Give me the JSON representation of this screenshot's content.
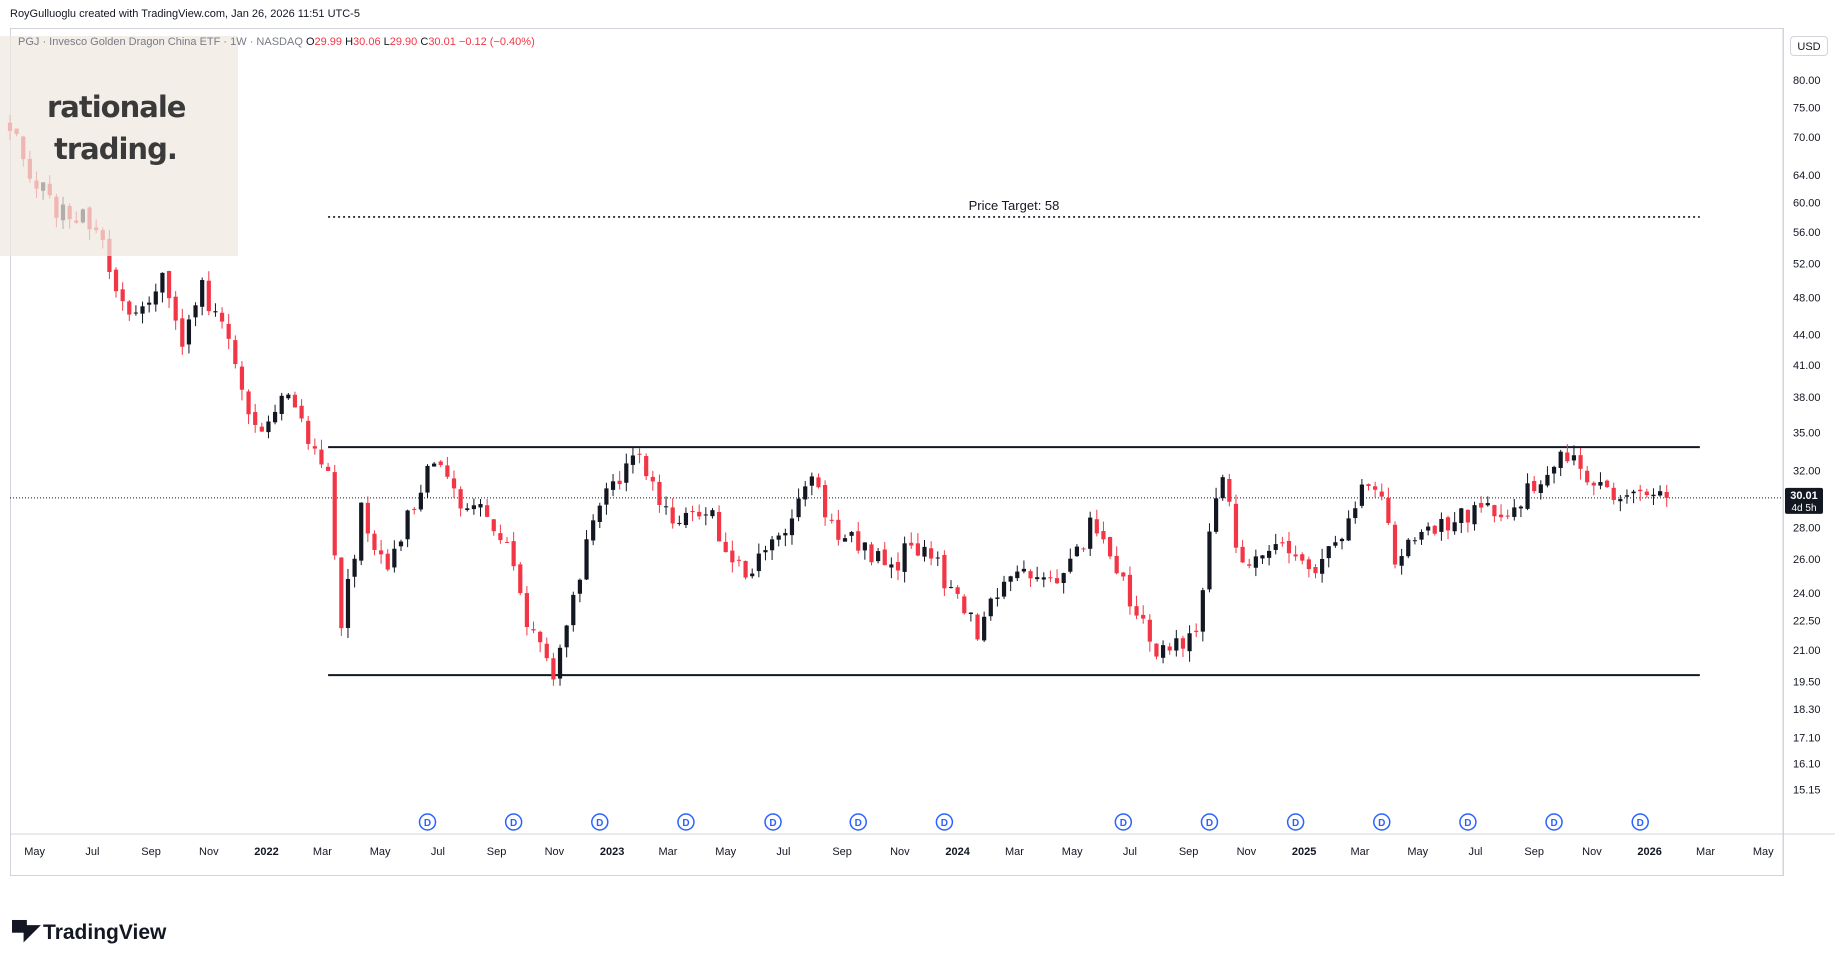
{
  "header": {
    "attribution": "RoyGulluoglu created with TradingView.com, Jan 26, 2026 11:51 UTC-5"
  },
  "legend": {
    "symbol": "PGJ · Invesco Golden Dragon China ETF · 1W · NASDAQ",
    "open_label": "O",
    "open": "29.99",
    "high_label": "H",
    "high": "30.06",
    "low_label": "L",
    "low": "29.90",
    "close_label": "C",
    "close": "30.01",
    "change": "−0.12 (−0.40%)"
  },
  "watermark": {
    "line1": "rationale",
    "line2": "trading."
  },
  "currency_button": "USD",
  "price_badge": {
    "price": "30.01",
    "countdown": "4d 5h"
  },
  "footer": {
    "logo_text": "TradingView"
  },
  "colors": {
    "up": "#131722",
    "down": "#f23645",
    "text": "#131722",
    "grid_line": "#d1d4dc",
    "dividend": "#2962ff"
  },
  "chart_data": {
    "type": "candlestick",
    "y_scale": "log",
    "ylim": [
      14.5,
      86
    ],
    "y_ticks": [
      "80.00",
      "75.00",
      "70.00",
      "64.00",
      "60.00",
      "56.00",
      "52.00",
      "48.00",
      "44.00",
      "41.00",
      "38.00",
      "35.00",
      "32.00",
      "28.00",
      "26.00",
      "24.00",
      "22.50",
      "21.00",
      "19.50",
      "18.30",
      "17.10",
      "16.10",
      "15.15"
    ],
    "y_tick_values": [
      80,
      75,
      70,
      64,
      60,
      56,
      52,
      48,
      44,
      41,
      38,
      35,
      32,
      28,
      26,
      24,
      22.5,
      21,
      19.5,
      18.3,
      17.1,
      16.1,
      15.15
    ],
    "x_ticks": [
      "May",
      "Jul",
      "Sep",
      "Nov",
      "2022",
      "Mar",
      "May",
      "Jul",
      "Sep",
      "Nov",
      "2023",
      "Mar",
      "May",
      "Jul",
      "Sep",
      "Nov",
      "2024",
      "Mar",
      "May",
      "Jul",
      "Sep",
      "Nov",
      "2025",
      "Mar",
      "May",
      "Jul",
      "Sep",
      "Nov",
      "2026",
      "Mar",
      "May"
    ],
    "x_range": [
      "2021-04-05",
      "2026-05-25"
    ],
    "last_price": 30.01,
    "annotations": [
      {
        "type": "horizontal-line",
        "value": 58,
        "style": "dotted",
        "label": "Price Target: 58",
        "from": "2022-03-07",
        "to": "2026-02-23"
      },
      {
        "type": "horizontal-line",
        "value": 33.8,
        "style": "solid",
        "label": "",
        "from": "2022-03-07",
        "to": "2026-02-23"
      },
      {
        "type": "horizontal-line",
        "value": 19.8,
        "style": "solid",
        "label": "",
        "from": "2022-03-07",
        "to": "2026-02-23"
      }
    ],
    "dividend_marker_label": "D",
    "dividend_dates": [
      "2022-06-20",
      "2022-09-19",
      "2022-12-19",
      "2023-03-20",
      "2023-06-20",
      "2023-09-18",
      "2023-12-18",
      "2024-06-24",
      "2024-09-23",
      "2024-12-23",
      "2025-03-24",
      "2025-06-23",
      "2025-09-22",
      "2025-12-22"
    ],
    "anchors": [
      [
        "2021-04-05",
        72
      ],
      [
        "2021-04-26",
        64
      ],
      [
        "2021-05-24",
        59
      ],
      [
        "2021-06-21",
        58
      ],
      [
        "2021-07-12",
        54
      ],
      [
        "2021-07-26",
        48
      ],
      [
        "2021-08-23",
        46
      ],
      [
        "2021-09-13",
        50
      ],
      [
        "2021-10-04",
        43
      ],
      [
        "2021-10-25",
        49
      ],
      [
        "2021-11-15",
        45
      ],
      [
        "2021-12-06",
        38
      ],
      [
        "2021-12-27",
        35
      ],
      [
        "2022-01-24",
        38
      ],
      [
        "2022-02-14",
        34
      ],
      [
        "2022-03-07",
        32
      ],
      [
        "2022-03-21",
        22.5
      ],
      [
        "2022-04-11",
        29
      ],
      [
        "2022-05-09",
        25.5
      ],
      [
        "2022-05-30",
        28.5
      ],
      [
        "2022-06-27",
        33
      ],
      [
        "2022-07-25",
        29
      ],
      [
        "2022-08-15",
        30
      ],
      [
        "2022-09-12",
        27
      ],
      [
        "2022-10-03",
        22.5
      ],
      [
        "2022-10-31",
        19.5
      ],
      [
        "2022-11-21",
        23.5
      ],
      [
        "2022-12-12",
        28.8
      ],
      [
        "2023-01-09",
        31.5
      ],
      [
        "2023-01-30",
        33.2
      ],
      [
        "2023-02-20",
        30
      ],
      [
        "2023-03-13",
        28
      ],
      [
        "2023-04-10",
        29.5
      ],
      [
        "2023-05-08",
        26
      ],
      [
        "2023-05-29",
        25.2
      ],
      [
        "2023-06-26",
        27.5
      ],
      [
        "2023-07-31",
        31.5
      ],
      [
        "2023-08-21",
        28
      ],
      [
        "2023-09-18",
        27
      ],
      [
        "2023-10-23",
        25.5
      ],
      [
        "2023-11-13",
        26.8
      ],
      [
        "2023-12-11",
        25.5
      ],
      [
        "2024-01-22",
        22
      ],
      [
        "2024-02-12",
        24
      ],
      [
        "2024-03-11",
        25.5
      ],
      [
        "2024-04-15",
        24.2
      ],
      [
        "2024-05-20",
        28
      ],
      [
        "2024-06-17",
        25.5
      ],
      [
        "2024-07-08",
        22.5
      ],
      [
        "2024-08-05",
        20.8
      ],
      [
        "2024-09-09",
        21.8
      ],
      [
        "2024-09-23",
        28
      ],
      [
        "2024-10-07",
        31.8
      ],
      [
        "2024-10-21",
        26.5
      ],
      [
        "2024-11-11",
        25.8
      ],
      [
        "2024-12-09",
        26.8
      ],
      [
        "2025-01-13",
        25
      ],
      [
        "2025-02-10",
        27.5
      ],
      [
        "2025-03-03",
        30.8
      ],
      [
        "2025-03-24",
        30.2
      ],
      [
        "2025-04-07",
        25.5
      ],
      [
        "2025-04-28",
        27.2
      ],
      [
        "2025-06-02",
        28.5
      ],
      [
        "2025-07-07",
        29
      ],
      [
        "2025-08-11",
        29.5
      ],
      [
        "2025-09-15",
        32
      ],
      [
        "2025-10-06",
        33.5
      ],
      [
        "2025-10-20",
        31.8
      ],
      [
        "2025-11-17",
        30.5
      ],
      [
        "2025-12-08",
        29.8
      ],
      [
        "2026-01-19",
        30.01
      ]
    ]
  }
}
